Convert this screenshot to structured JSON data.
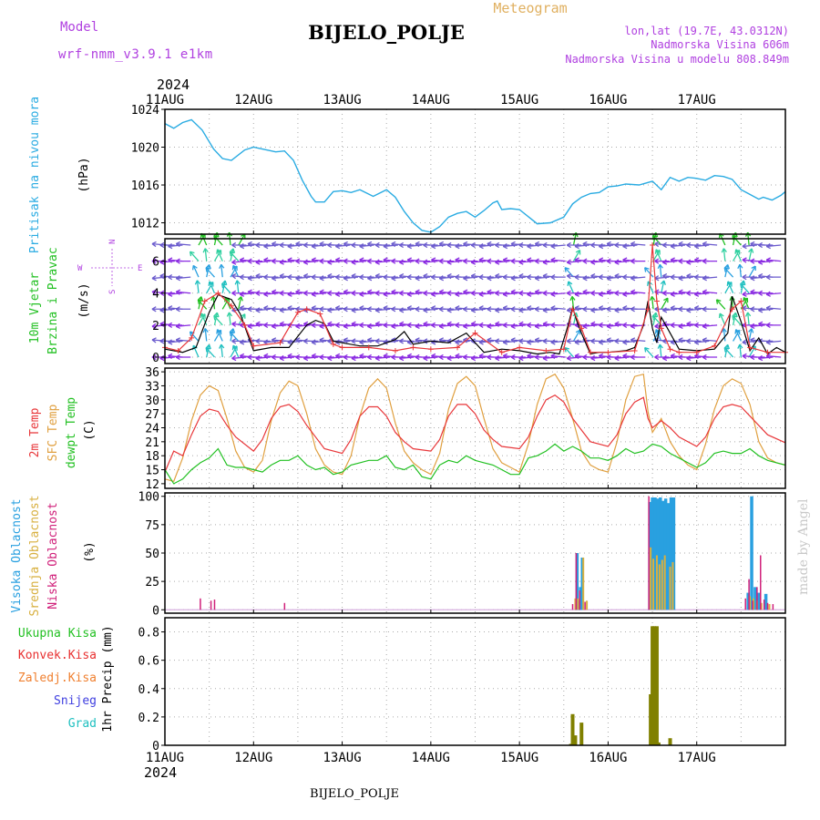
{
  "header": {
    "model_label": "Model",
    "model_name": "wrf-nmm_v3.9.1 e1km",
    "title": "BIJELO_POLJE",
    "product": "Meteogram",
    "lonlat": "lon,lat (19.7E, 43.0312N)",
    "altitude": "Nadmorska Visina 606m",
    "model_altitude": "Nadmorska Visina u modelu 808.849m",
    "bottom_title": "BIJELO_POLJE",
    "credit": "made by Angel"
  },
  "time_axis": {
    "year": "2024",
    "labels": [
      "11AUG",
      "12AUG",
      "13AUG",
      "14AUG",
      "15AUG",
      "16AUG",
      "17AUG"
    ]
  },
  "colors": {
    "pressure": "#29abe2",
    "wind_speed": "#000000",
    "wind_gust": "#e8373a",
    "temp_2m": "#e8373a",
    "temp_sfc": "#e0a040",
    "dewpoint": "#22c022",
    "cloud_high": "#29a0e0",
    "cloud_mid": "#d8b040",
    "cloud_low": "#d0207a",
    "precip_total": "#808000",
    "precip_conv": "#e83030",
    "precip_frozen": "#f08030",
    "snow": "#4040e0",
    "graupel": "#20c0c0",
    "label_green": "#22c022",
    "label_purple": "#b040e0"
  },
  "chart_data": [
    {
      "type": "line",
      "name": "pressure",
      "labels": [
        "Pritisak na nivou mora",
        "(hPa)"
      ],
      "ylim": [
        1010.8,
        1024
      ],
      "yticks": [
        1012,
        1016,
        1020,
        1024
      ],
      "series": [
        {
          "x": [
            0,
            0.1,
            0.2,
            0.3,
            0.42,
            0.55,
            0.65,
            0.75,
            0.9,
            1.0,
            1.1,
            1.25,
            1.35,
            1.45,
            1.55,
            1.65,
            1.7,
            1.8,
            1.9,
            2.0,
            2.1,
            2.2,
            2.35,
            2.5,
            2.6,
            2.7,
            2.8,
            2.9,
            3.0,
            3.1,
            3.2,
            3.3,
            3.4,
            3.5,
            3.6,
            3.7,
            3.75,
            3.8,
            3.9,
            4.0,
            4.2,
            4.35,
            4.5,
            4.6,
            4.7,
            4.8,
            4.9,
            5.0,
            5.1,
            5.2,
            5.35,
            5.5,
            5.6,
            5.7,
            5.8,
            5.9,
            6.0,
            6.1,
            6.2,
            6.3,
            6.4,
            6.5,
            6.6,
            6.7,
            6.75,
            6.85,
            6.95,
            7.0
          ],
          "y": [
            1022.5,
            1022.0,
            1022.6,
            1022.9,
            1021.8,
            1019.8,
            1018.8,
            1018.6,
            1019.7,
            1020.0,
            1019.8,
            1019.5,
            1019.6,
            1018.6,
            1016.5,
            1014.8,
            1014.2,
            1014.2,
            1015.3,
            1015.4,
            1015.2,
            1015.5,
            1014.8,
            1015.5,
            1014.7,
            1013.2,
            1012.0,
            1011.2,
            1011.0,
            1011.6,
            1012.6,
            1013.0,
            1013.2,
            1012.6,
            1013.3,
            1014.1,
            1014.3,
            1013.4,
            1013.5,
            1013.4,
            1011.9,
            1012.0,
            1012.6,
            1014.0,
            1014.7,
            1015.1,
            1015.2,
            1015.8,
            1015.9,
            1016.1,
            1016.0,
            1016.4,
            1015.5,
            1016.8,
            1016.4,
            1016.8,
            1016.7,
            1016.5,
            1017.0,
            1016.9,
            1016.6,
            1015.5,
            1015.0,
            1014.5,
            1014.7,
            1014.4,
            1014.9,
            1015.3
          ]
        }
      ]
    },
    {
      "type": "line",
      "name": "wind",
      "labels": [
        "10m Vjetar",
        "Brzina i Pravac",
        "(m/s)"
      ],
      "compass": [
        "N",
        "W",
        "E",
        "S"
      ],
      "ylim": [
        -0.4,
        7.4
      ],
      "yticks": [
        0,
        2,
        4,
        6
      ],
      "series": [
        {
          "name": "speed",
          "x": [
            0,
            0.2,
            0.35,
            0.5,
            0.6,
            0.75,
            0.85,
            1.0,
            1.2,
            1.4,
            1.6,
            1.7,
            1.8,
            1.9,
            2.0,
            2.2,
            2.4,
            2.6,
            2.7,
            2.8,
            3.0,
            3.2,
            3.4,
            3.6,
            3.8,
            4.0,
            4.2,
            4.35,
            4.45,
            4.55,
            4.6,
            4.65,
            4.7,
            4.8,
            4.9,
            5.0,
            5.2,
            5.3,
            5.4,
            5.45,
            5.5,
            5.55,
            5.6,
            5.7,
            5.8,
            6.0,
            6.2,
            6.35,
            6.4,
            6.5,
            6.6,
            6.7,
            6.8,
            6.9,
            7.0
          ],
          "y": [
            0.5,
            0.3,
            0.6,
            2.8,
            3.9,
            3.6,
            2.7,
            0.4,
            0.6,
            0.6,
            2.0,
            2.3,
            2.1,
            1.0,
            0.9,
            0.7,
            0.7,
            1.1,
            1.6,
            0.8,
            1.0,
            0.9,
            1.5,
            0.3,
            0.5,
            0.4,
            0.2,
            0.3,
            0.2,
            2.0,
            3.1,
            2.2,
            1.5,
            0.2,
            0.3,
            0.3,
            0.4,
            0.6,
            2.0,
            3.5,
            1.8,
            0.9,
            2.5,
            1.5,
            0.5,
            0.4,
            0.5,
            1.5,
            3.8,
            2.2,
            0.4,
            1.2,
            0.2,
            0.6,
            0.3
          ]
        },
        {
          "name": "gust",
          "x": [
            0,
            0.15,
            0.3,
            0.45,
            0.6,
            0.75,
            0.9,
            1.0,
            1.3,
            1.5,
            1.6,
            1.75,
            1.9,
            2.0,
            2.3,
            2.6,
            2.8,
            3.0,
            3.3,
            3.5,
            3.8,
            4.0,
            4.3,
            4.5,
            4.6,
            4.7,
            4.8,
            5.0,
            5.3,
            5.45,
            5.5,
            5.55,
            5.6,
            5.7,
            5.8,
            6.0,
            6.2,
            6.4,
            6.5,
            6.6,
            6.8,
            7.0
          ],
          "y": [
            0.6,
            0.4,
            1.2,
            3.5,
            4.0,
            3.2,
            2.0,
            0.7,
            0.9,
            2.8,
            3.0,
            2.7,
            0.8,
            0.6,
            0.6,
            0.4,
            0.6,
            0.5,
            0.6,
            1.5,
            0.3,
            0.6,
            0.4,
            0.5,
            3.0,
            1.8,
            0.3,
            0.3,
            0.4,
            3.0,
            7.0,
            3.5,
            1.8,
            0.5,
            0.3,
            0.3,
            0.7,
            3.0,
            3.5,
            0.6,
            0.3,
            0.3
          ]
        }
      ]
    },
    {
      "type": "line",
      "name": "temperature",
      "labels": [
        "2m Temp",
        "SFC Temp",
        "dewpt Temp",
        "(C)"
      ],
      "ylim": [
        11,
        36.8
      ],
      "yticks": [
        12,
        15,
        18,
        21,
        24,
        27,
        30,
        33,
        36
      ],
      "series": [
        {
          "name": "2m",
          "x": [
            0,
            0.1,
            0.2,
            0.3,
            0.4,
            0.5,
            0.6,
            0.7,
            0.8,
            1.0,
            1.1,
            1.2,
            1.3,
            1.4,
            1.5,
            1.6,
            1.7,
            1.8,
            2.0,
            2.1,
            2.2,
            2.3,
            2.4,
            2.5,
            2.6,
            2.7,
            2.8,
            3.0,
            3.1,
            3.2,
            3.3,
            3.4,
            3.5,
            3.6,
            3.7,
            3.8,
            4.0,
            4.1,
            4.2,
            4.3,
            4.4,
            4.5,
            4.6,
            4.7,
            4.8,
            5.0,
            5.1,
            5.2,
            5.3,
            5.4,
            5.45,
            5.5,
            5.6,
            5.7,
            5.8,
            6.0,
            6.1,
            6.2,
            6.3,
            6.4,
            6.5,
            6.6,
            6.7,
            6.8,
            7.0
          ],
          "y": [
            14.5,
            19.0,
            18.0,
            22.5,
            26.5,
            28.0,
            27.5,
            24.5,
            22.0,
            19.0,
            21.5,
            26.0,
            28.5,
            29.0,
            27.5,
            24.5,
            22.0,
            19.5,
            18.5,
            21.5,
            26.5,
            28.5,
            28.5,
            26.5,
            23.0,
            21.0,
            19.5,
            19.0,
            21.5,
            26.5,
            29.0,
            29.0,
            27.0,
            23.5,
            21.5,
            20.0,
            19.5,
            22.0,
            26.5,
            30.0,
            31.0,
            29.5,
            26.0,
            23.5,
            21.0,
            20.0,
            22.5,
            27.0,
            29.5,
            30.5,
            26.0,
            24.0,
            25.5,
            24.0,
            22.0,
            20.0,
            22.0,
            26.0,
            28.5,
            29.0,
            28.5,
            26.5,
            24.5,
            22.5,
            20.8
          ]
        },
        {
          "name": "SFC",
          "x": [
            0,
            0.1,
            0.2,
            0.3,
            0.4,
            0.5,
            0.6,
            0.7,
            0.8,
            0.9,
            1.0,
            1.1,
            1.2,
            1.3,
            1.4,
            1.5,
            1.6,
            1.7,
            1.8,
            1.9,
            2.0,
            2.1,
            2.2,
            2.3,
            2.4,
            2.5,
            2.6,
            2.7,
            2.8,
            2.9,
            3.0,
            3.1,
            3.2,
            3.3,
            3.4,
            3.5,
            3.6,
            3.7,
            3.8,
            3.9,
            4.0,
            4.1,
            4.2,
            4.3,
            4.4,
            4.5,
            4.6,
            4.7,
            4.8,
            4.9,
            5.0,
            5.1,
            5.2,
            5.3,
            5.4,
            5.45,
            5.5,
            5.6,
            5.7,
            5.8,
            5.9,
            6.0,
            6.1,
            6.2,
            6.3,
            6.4,
            6.5,
            6.6,
            6.7,
            6.8,
            6.9,
            7.0
          ],
          "y": [
            13.0,
            12.5,
            17.5,
            25.5,
            31.0,
            33.0,
            32.0,
            26.0,
            19.0,
            15.5,
            14.5,
            17.0,
            25.5,
            31.5,
            34.0,
            33.0,
            27.0,
            19.5,
            16.0,
            14.5,
            14.0,
            18.0,
            26.5,
            32.5,
            34.5,
            32.5,
            25.0,
            19.0,
            16.5,
            15.0,
            14.0,
            18.5,
            28.0,
            33.5,
            35.0,
            33.0,
            26.0,
            19.5,
            16.5,
            15.5,
            14.5,
            20.5,
            29.0,
            34.5,
            35.5,
            32.5,
            26.0,
            19.0,
            16.0,
            15.0,
            14.5,
            21.0,
            30.0,
            35.0,
            35.5,
            27.5,
            23.0,
            26.0,
            21.0,
            18.0,
            16.0,
            15.0,
            20.5,
            28.0,
            33.0,
            34.5,
            33.5,
            29.0,
            21.0,
            17.5,
            16.5,
            16.0
          ]
        },
        {
          "name": "dewpoint",
          "x": [
            0,
            0.1,
            0.2,
            0.3,
            0.4,
            0.5,
            0.6,
            0.7,
            0.8,
            0.9,
            1.0,
            1.1,
            1.2,
            1.3,
            1.4,
            1.5,
            1.6,
            1.7,
            1.8,
            1.9,
            2.0,
            2.1,
            2.2,
            2.3,
            2.4,
            2.5,
            2.6,
            2.7,
            2.8,
            2.9,
            3.0,
            3.1,
            3.2,
            3.3,
            3.4,
            3.5,
            3.6,
            3.7,
            3.8,
            3.9,
            4.0,
            4.1,
            4.2,
            4.3,
            4.4,
            4.5,
            4.6,
            4.7,
            4.8,
            4.9,
            5.0,
            5.1,
            5.2,
            5.3,
            5.4,
            5.5,
            5.6,
            5.7,
            5.8,
            5.9,
            6.0,
            6.1,
            6.2,
            6.3,
            6.4,
            6.5,
            6.6,
            6.7,
            6.8,
            6.9,
            7.0
          ],
          "y": [
            15.0,
            12.0,
            13.0,
            15.0,
            16.5,
            17.5,
            19.5,
            16.0,
            15.5,
            15.5,
            15.0,
            14.5,
            16.0,
            17.0,
            17.0,
            18.0,
            16.0,
            15.0,
            15.5,
            14.0,
            14.5,
            16.0,
            16.5,
            17.0,
            17.0,
            18.0,
            15.5,
            15.0,
            16.0,
            13.5,
            13.0,
            16.0,
            17.0,
            16.5,
            18.0,
            17.0,
            16.5,
            16.0,
            15.0,
            14.0,
            14.0,
            17.5,
            18.0,
            19.0,
            20.5,
            19.0,
            20.0,
            19.0,
            17.5,
            17.5,
            17.0,
            18.0,
            19.5,
            18.5,
            19.0,
            20.5,
            20.0,
            18.5,
            17.5,
            16.5,
            15.5,
            16.5,
            18.5,
            19.0,
            18.5,
            18.5,
            19.5,
            18.0,
            17.0,
            16.5,
            16.0
          ]
        }
      ]
    },
    {
      "type": "bar",
      "name": "cloud_cover",
      "labels": [
        "Visoka Oblacnost",
        "Srednja Oblacnost",
        "Niska Oblacnost",
        "(%)"
      ],
      "ylim": [
        -3,
        103
      ],
      "yticks": [
        0,
        25,
        50,
        75,
        100
      ],
      "series": [
        {
          "name": "high",
          "x": [
            4.65,
            4.67,
            4.69,
            4.71,
            5.47,
            5.5,
            5.53,
            5.56,
            5.59,
            5.62,
            5.65,
            5.68,
            5.71,
            5.74,
            6.58,
            6.62,
            6.66,
            6.7,
            6.78
          ],
          "y": [
            50,
            8,
            20,
            46,
            95,
            99,
            99,
            98,
            99,
            96,
            98,
            94,
            99,
            99,
            15,
            100,
            20,
            15,
            14
          ]
        },
        {
          "name": "mid",
          "x": [
            4.63,
            4.66,
            4.72,
            4.76,
            5.48,
            5.51,
            5.55,
            5.58,
            5.61,
            5.64,
            5.7,
            5.73,
            6.6,
            6.64,
            6.68,
            6.73,
            6.82
          ],
          "y": [
            10,
            10,
            46,
            8,
            55,
            45,
            48,
            40,
            44,
            48,
            38,
            42,
            12,
            10,
            8,
            6,
            5
          ]
        },
        {
          "name": "low",
          "x": [
            0.4,
            0.52,
            0.56,
            1.35,
            4.6,
            4.64,
            4.68,
            4.74,
            5.46,
            6.55,
            6.59,
            6.63,
            6.68,
            6.72,
            6.76,
            6.8,
            6.86
          ],
          "y": [
            10,
            8,
            9,
            6,
            5,
            50,
            17,
            7,
            100,
            10,
            27,
            8,
            20,
            48,
            9,
            6,
            5
          ]
        }
      ]
    },
    {
      "type": "bar",
      "name": "precipitation",
      "labels": [
        "Ukupna Kisa",
        "Konvek.Kisa",
        "Zaledj.Kisa",
        "Snijeg",
        "Grad",
        "1hr Precip (mm)"
      ],
      "ylim": [
        0,
        0.9
      ],
      "yticks": [
        0,
        0.2,
        0.4,
        0.6,
        0.8
      ],
      "series": [
        {
          "name": "Ukupna Kisa",
          "x": [
            4.58,
            4.6,
            4.63,
            4.7,
            5.48,
            5.5,
            5.52,
            5.55,
            5.57,
            5.7
          ],
          "y": [
            0.01,
            0.22,
            0.07,
            0.16,
            0.36,
            0.84,
            0.84,
            0.84,
            0.02,
            0.05
          ]
        }
      ]
    }
  ]
}
